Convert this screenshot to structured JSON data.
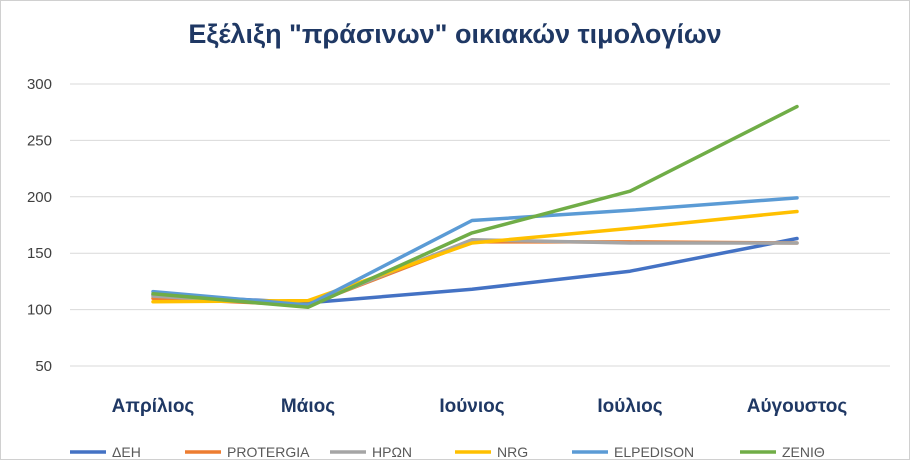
{
  "chart_data": {
    "type": "line",
    "title": "Εξέλιξη \"πράσινων\" οικιακών τιμολογίων",
    "xlabel": "",
    "ylabel": "",
    "categories": [
      "Απρίλιος",
      "Μάιος",
      "Ιούνιος",
      "Ιούλιος",
      "Αύγουστος"
    ],
    "ylim": [
      50,
      300
    ],
    "yticks": [
      50,
      100,
      150,
      200,
      250,
      300
    ],
    "grid": true,
    "legend_position": "bottom",
    "series": [
      {
        "name": "ΔΕΗ",
        "color": "#4472c4",
        "values": [
          113,
          106,
          118,
          134,
          163
        ]
      },
      {
        "name": "PROTERGIA",
        "color": "#ed7d31",
        "values": [
          110,
          104,
          160,
          160,
          159
        ]
      },
      {
        "name": "ΗΡΩΝ",
        "color": "#a5a5a5",
        "values": [
          112,
          104,
          162,
          159,
          159
        ]
      },
      {
        "name": "NRG",
        "color": "#ffc000",
        "values": [
          107,
          108,
          159,
          172,
          187
        ]
      },
      {
        "name": "ELPEDISON",
        "color": "#5b9bd5",
        "values": [
          116,
          104,
          179,
          188,
          199
        ]
      },
      {
        "name": "ZENIΘ",
        "color": "#70ad47",
        "values": [
          114,
          102,
          168,
          205,
          280
        ]
      }
    ]
  }
}
